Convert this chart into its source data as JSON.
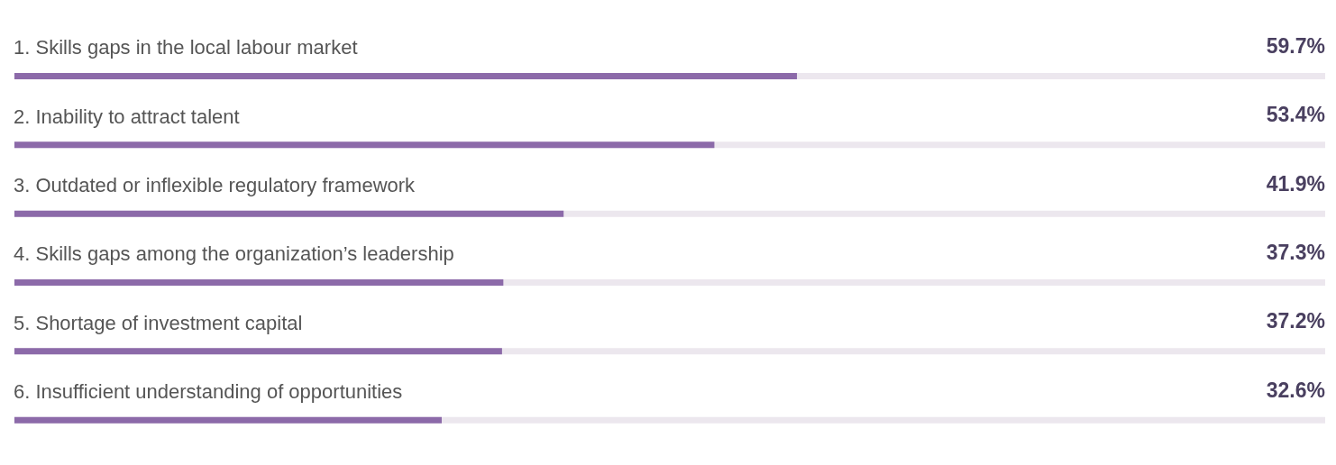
{
  "chart_data": {
    "type": "bar",
    "orientation": "horizontal",
    "categories": [
      "1. Skills gaps in the local labour market",
      "2. Inability to attract talent",
      "3. Outdated or inflexible regulatory framework",
      "4. Skills gaps among the organization’s leadership",
      "5. Shortage of investment capital",
      "6. Insufficient understanding of opportunities"
    ],
    "values": [
      59.7,
      53.4,
      41.9,
      37.3,
      37.2,
      32.6
    ],
    "value_labels": [
      "59.7%",
      "53.4%",
      "41.9%",
      "37.3%",
      "37.2%",
      "32.6%"
    ],
    "color": "#8c6aa9",
    "xlim": [
      0,
      100
    ],
    "tick_labels": false
  }
}
